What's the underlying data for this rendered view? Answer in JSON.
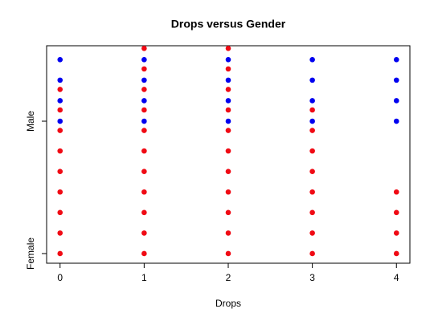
{
  "chart_data": {
    "type": "scatter",
    "title": "Drops versus Gender",
    "xlabel": "Drops",
    "series": [
      {
        "color": "#f00a14",
        "x": [
          0,
          0,
          0,
          0,
          0,
          0,
          0,
          0,
          0,
          1,
          1,
          1,
          1,
          1,
          1,
          1,
          1,
          1,
          1,
          1,
          2,
          2,
          2,
          2,
          2,
          2,
          2,
          2,
          2,
          2,
          2,
          3,
          3,
          3,
          3,
          3,
          3,
          3,
          3,
          4,
          4,
          4,
          4
        ],
        "values": [
          1,
          1.155,
          1.31,
          1.465,
          1.62,
          1.775,
          1.93,
          2.085,
          2.24,
          1,
          1.155,
          1.31,
          1.465,
          1.62,
          1.775,
          1.93,
          2.085,
          2.24,
          2.395,
          2.55,
          1,
          1.155,
          1.31,
          1.465,
          1.62,
          1.775,
          1.93,
          2.085,
          2.24,
          2.395,
          2.55,
          1,
          1.155,
          1.31,
          1.465,
          1.62,
          1.775,
          1.93,
          2.085,
          1,
          1.155,
          1.31,
          1.465
        ]
      },
      {
        "color": "#0000f0",
        "x": [
          0,
          0,
          0,
          0,
          1,
          1,
          1,
          1,
          2,
          2,
          2,
          2,
          3,
          3,
          3,
          3,
          4,
          4,
          4,
          4
        ],
        "values": [
          2,
          2.155,
          2.31,
          2.465,
          2,
          2.155,
          2.31,
          2.465,
          2,
          2.155,
          2.31,
          2.465,
          2,
          2.155,
          2.31,
          2.465,
          2,
          2.155,
          2.31,
          2.465
        ]
      }
    ],
    "xlim": [
      -0.16,
      4.16
    ],
    "xticks": [
      0,
      1,
      2,
      3,
      4
    ],
    "ylim": [
      0.927,
      2.57
    ],
    "yticks": [
      {
        "value": 1,
        "label": "Female"
      },
      {
        "value": 2,
        "label": "Male"
      }
    ]
  }
}
